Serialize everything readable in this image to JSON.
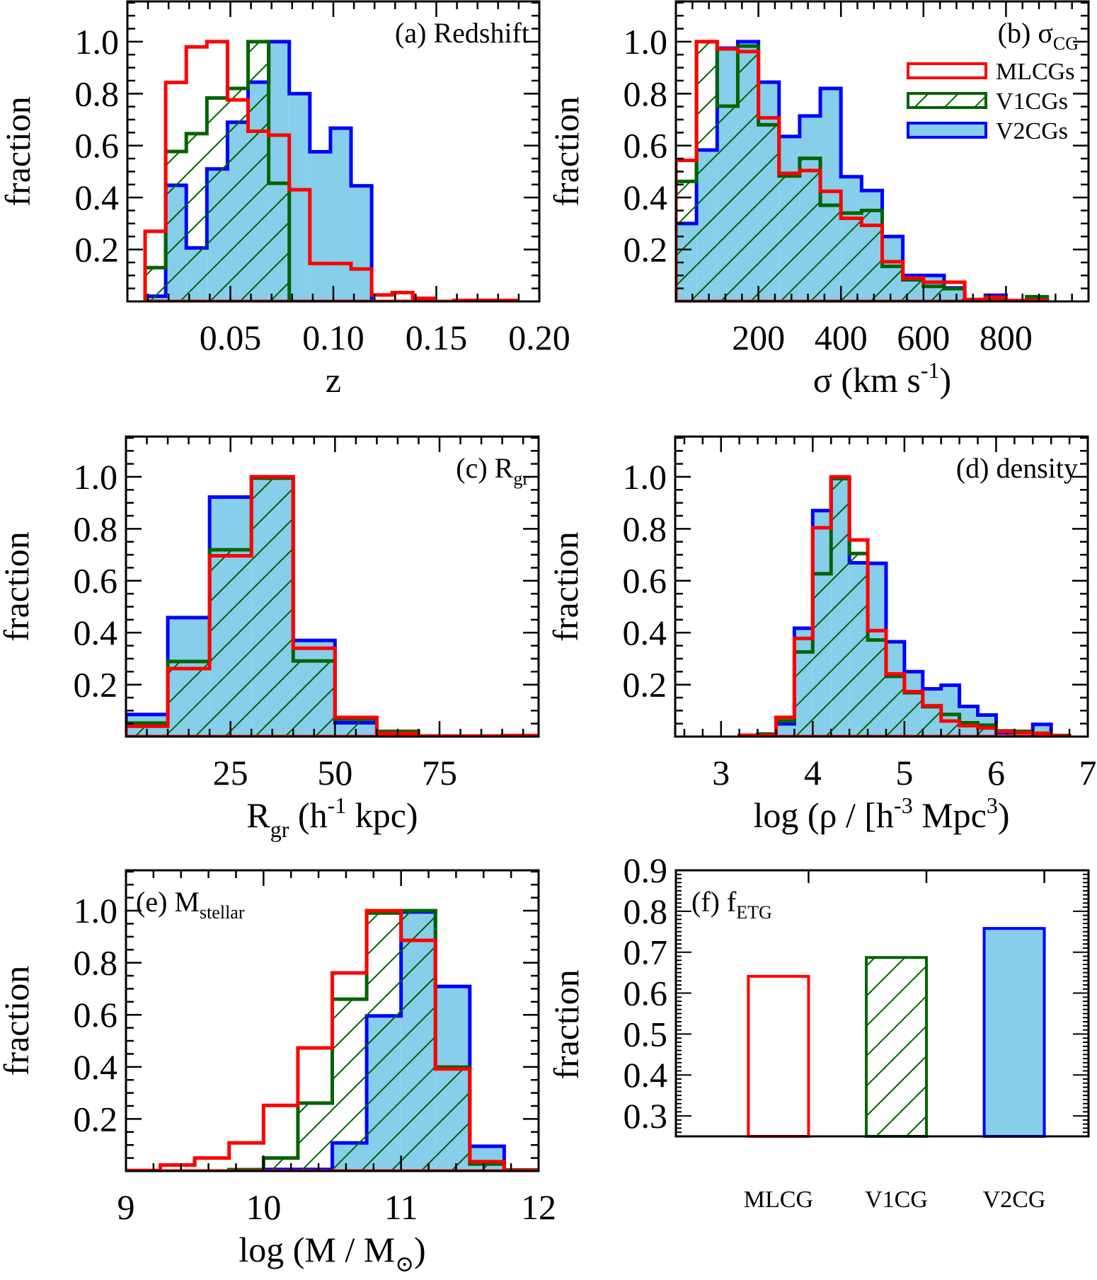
{
  "figure": {
    "colors": {
      "MLCG": "#ff0000",
      "V1CG": "#006400",
      "V2CG_edge": "#0000ff",
      "V2CG_fill": "#87ceeb"
    },
    "legend": {
      "entries": [
        {
          "key": "MLCG",
          "label": "MLCGs",
          "style": "open"
        },
        {
          "key": "V1CG",
          "label": "V1CGs",
          "style": "hatched"
        },
        {
          "key": "V2CG",
          "label": "V2CGs",
          "style": "filled"
        }
      ]
    }
  },
  "chart_data": [
    {
      "id": "a",
      "type": "histogram",
      "title": "(a) Redshift",
      "title_sub": "",
      "title_position": "top-right",
      "xlabel": "z",
      "ylabel": "fraction",
      "xlim": [
        0.0,
        0.2
      ],
      "ylim": [
        0.0,
        1.155
      ],
      "xticks": [
        0.05,
        0.1,
        0.15,
        0.2
      ],
      "xtick_labels": [
        "0.05",
        "0.10",
        "0.15",
        "0.20"
      ],
      "yticks": [
        0.2,
        0.4,
        0.6,
        0.8,
        1.0
      ],
      "ytick_labels": [
        "0.2",
        "0.4",
        "0.6",
        "0.8",
        "1.0"
      ],
      "bin_start": 0.0086,
      "bin_width": 0.01,
      "series": [
        {
          "name": "MLCGs",
          "key": "MLCG",
          "values": [
            0.27,
            0.843,
            0.98,
            1.0,
            0.776,
            0.655,
            0.64,
            0.43,
            0.146,
            0.146,
            0.125,
            0.025,
            0.034,
            0.012,
            0.0,
            0.004,
            0.004,
            0.004
          ]
        },
        {
          "name": "V1CGs",
          "key": "V1CG",
          "values": [
            0.13,
            0.577,
            0.646,
            0.783,
            0.82,
            1.0,
            0.455,
            0.0,
            0,
            0,
            0,
            0,
            0,
            0,
            0,
            0,
            0,
            0
          ]
        },
        {
          "name": "V2CGs",
          "key": "V2CG",
          "values": [
            0.02,
            0.447,
            0.206,
            0.51,
            0.69,
            0.844,
            1.0,
            0.8,
            0.576,
            0.667,
            0.445,
            0,
            0,
            0,
            0,
            0,
            0,
            0
          ]
        }
      ]
    },
    {
      "id": "b",
      "type": "histogram",
      "title": "(b) σ",
      "title_sub": "CG",
      "title_position": "top-right",
      "legend": true,
      "legend_position": "top-right",
      "xlabel": "σ (km s",
      "xlabel_sup": "-1",
      "xlabel_end": ")",
      "ylabel": "fraction",
      "xlim": [
        0,
        1000
      ],
      "ylim": [
        0.0,
        1.155
      ],
      "xticks": [
        200,
        400,
        600,
        800
      ],
      "xtick_labels": [
        "200",
        "400",
        "600",
        "800"
      ],
      "yticks": [
        0.2,
        0.4,
        0.6,
        0.8,
        1.0
      ],
      "ytick_labels": [
        "0.2",
        "0.4",
        "0.6",
        "0.8",
        "1.0"
      ],
      "bin_start": 0,
      "bin_width": 50,
      "series": [
        {
          "name": "MLCGs",
          "key": "MLCG",
          "values": [
            0.543,
            1.0,
            0.972,
            0.962,
            0.707,
            0.493,
            0.504,
            0.424,
            0.32,
            0.293,
            0.153,
            0.09,
            0.074,
            0.074,
            0.007,
            0.016,
            0.003,
            0.004
          ]
        },
        {
          "name": "V1CGs",
          "key": "V1CG",
          "values": [
            0.462,
            1.0,
            0.752,
            0.983,
            0.68,
            0.483,
            0.551,
            0.37,
            0.34,
            0.35,
            0.135,
            0.083,
            0.058,
            0.049,
            0.005,
            0.01,
            0.0,
            0.018
          ]
        },
        {
          "name": "V2CGs",
          "key": "V2CG",
          "values": [
            0.3,
            0.583,
            0.975,
            1.0,
            0.844,
            0.635,
            0.714,
            0.82,
            0.48,
            0.427,
            0.25,
            0.1,
            0.1,
            0.052,
            0.007,
            0.024,
            0.003,
            0.005
          ]
        }
      ]
    },
    {
      "id": "c",
      "type": "histogram",
      "title": "(c) R",
      "title_sub": "gr",
      "title_position": "top-right",
      "xlabel": "R",
      "xlabel_sub": "gr",
      "xlabel_mid": " (h",
      "xlabel_sup": "-1",
      "xlabel_end": " kpc)",
      "ylabel": "fraction",
      "xlim": [
        0,
        98.7
      ],
      "ylim": [
        0.0,
        1.155
      ],
      "xticks": [
        25,
        50,
        75
      ],
      "xtick_labels": [
        "25",
        "50",
        "75"
      ],
      "yticks": [
        0.2,
        0.4,
        0.6,
        0.8,
        1.0
      ],
      "ytick_labels": [
        "0.2",
        "0.4",
        "0.6",
        "0.8",
        "1.0"
      ],
      "bin_start": 0,
      "bin_width": 10,
      "series": [
        {
          "name": "MLCGs",
          "key": "MLCG",
          "values": [
            0.04,
            0.262,
            0.696,
            1.0,
            0.34,
            0.074,
            0.013,
            0.002,
            0.002,
            0.004
          ]
        },
        {
          "name": "V1CGs",
          "key": "V1CG",
          "values": [
            0.052,
            0.289,
            0.719,
            0.995,
            0.291,
            0.067,
            0.02,
            0.002,
            0.002,
            0.004
          ]
        },
        {
          "name": "V2CGs",
          "key": "V2CG",
          "values": [
            0.085,
            0.458,
            0.922,
            1.0,
            0.37,
            0.053,
            0.005,
            0,
            0,
            0
          ]
        }
      ]
    },
    {
      "id": "d",
      "type": "histogram",
      "title": "(d) density",
      "title_sub": "",
      "title_position": "top-right",
      "xlabel": "log (ρ / [h",
      "xlabel_sup": "-3",
      "xlabel_mid2": " Mpc",
      "xlabel_sup2": "3",
      "xlabel_end": ")",
      "ylabel": "fraction",
      "xlim": [
        2.5,
        7.0
      ],
      "ylim": [
        0.0,
        1.155
      ],
      "xticks": [
        3,
        4,
        5,
        6,
        7
      ],
      "xtick_labels": [
        "3",
        "4",
        "5",
        "6",
        "7"
      ],
      "yticks": [
        0.2,
        0.4,
        0.6,
        0.8,
        1.0
      ],
      "ytick_labels": [
        "0.2",
        "0.4",
        "0.6",
        "0.8",
        "1.0"
      ],
      "bin_start": 3.2,
      "bin_width": 0.2,
      "series": [
        {
          "name": "MLCGs",
          "key": "MLCG",
          "values": [
            0.005,
            0.005,
            0.074,
            0.378,
            0.804,
            1.0,
            0.757,
            0.408,
            0.241,
            0.173,
            0.119,
            0.06,
            0.042,
            0.033,
            0.02,
            0.015,
            0.013,
            0.002
          ]
        },
        {
          "name": "V1CGs",
          "key": "V1CG",
          "values": [
            0.0,
            0.01,
            0.06,
            0.326,
            0.627,
            0.994,
            0.705,
            0.372,
            0.232,
            0.169,
            0.115,
            0.085,
            0.053,
            0.044,
            0.022,
            0.02,
            0.011,
            0.004
          ]
        },
        {
          "name": "V2CGs",
          "key": "V2CG",
          "values": [
            0.0,
            0.0,
            0.049,
            0.417,
            0.87,
            0.994,
            0.669,
            0.667,
            0.365,
            0.25,
            0.184,
            0.198,
            0.116,
            0.083,
            0.015,
            0.015,
            0.047,
            0.0
          ]
        }
      ]
    },
    {
      "id": "e",
      "type": "histogram",
      "title": "(e) M",
      "title_sub": "stellar",
      "title_position": "top-left",
      "xlabel": "log (M / M",
      "xlabel_sub": "⊙",
      "xlabel_end": ")",
      "ylabel": "fraction",
      "xlim": [
        9,
        12
      ],
      "ylim": [
        0.0,
        1.155
      ],
      "xticks": [
        9,
        10,
        11,
        12
      ],
      "xtick_labels": [
        "9",
        "10",
        "11",
        "12"
      ],
      "yticks": [
        0.2,
        0.4,
        0.6,
        0.8,
        1.0
      ],
      "ytick_labels": [
        "0.2",
        "0.4",
        "0.6",
        "0.8",
        "1.0"
      ],
      "bin_start": 9.0,
      "bin_width": 0.25,
      "series": [
        {
          "name": "MLCGs",
          "key": "MLCG",
          "values": [
            0.002,
            0.023,
            0.05,
            0.108,
            0.252,
            0.473,
            0.761,
            1.0,
            0.886,
            0.392,
            0.036,
            0.002
          ]
        },
        {
          "name": "V1CGs",
          "key": "V1CG",
          "values": [
            0,
            0,
            0,
            0.005,
            0.05,
            0.261,
            0.66,
            0.991,
            1.0,
            0.399,
            0.027,
            0.004
          ]
        },
        {
          "name": "V2CGs",
          "key": "V2CG",
          "values": [
            0,
            0,
            0,
            0.005,
            0.006,
            0.006,
            0.108,
            0.596,
            0.995,
            0.709,
            0.095,
            0
          ]
        }
      ]
    },
    {
      "id": "f",
      "type": "bar",
      "title": "(f) f",
      "title_sub": "ETG",
      "title_position": "top-left",
      "xlabel": "",
      "ylabel": "fraction",
      "ylim": [
        0.25,
        0.9
      ],
      "yticks": [
        0.3,
        0.4,
        0.5,
        0.6,
        0.7,
        0.8,
        0.9
      ],
      "ytick_labels": [
        "0.3",
        "0.4",
        "0.5",
        "0.6",
        "0.7",
        "0.8",
        "0.9"
      ],
      "categories": [
        "MLCG",
        "V1CG",
        "V2CG"
      ],
      "keys": [
        "MLCG",
        "V1CG",
        "V2CG"
      ],
      "values": [
        0.641,
        0.687,
        0.758
      ]
    }
  ]
}
